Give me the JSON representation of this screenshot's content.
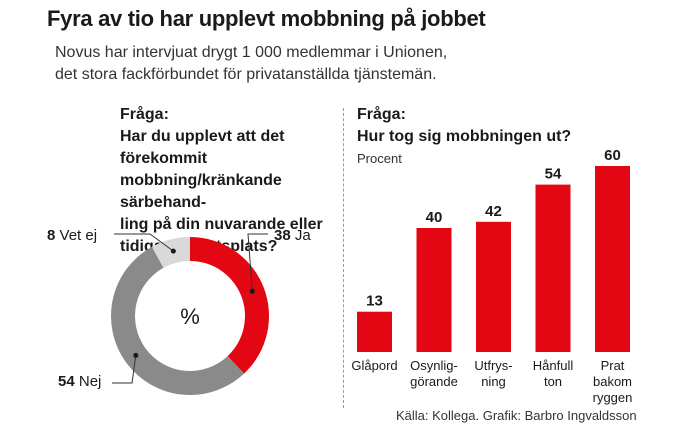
{
  "header": {
    "title": "Fyra av tio har upplevt mobbning på jobbet",
    "subtitle_lines": [
      "Novus har intervjuat drygt 1 000 medlemmar i Unionen,",
      "det stora fackförbundet för privatanställda tjänstemän."
    ]
  },
  "left": {
    "question_label": "Fråga:",
    "question_lines": [
      "Har du upplevt att det förekommit",
      "mobbning/kränkande särbehand-",
      "ling på din nuvarande eller",
      "tidigare arbetsplats?"
    ],
    "center_label": "%"
  },
  "right": {
    "question_label": "Fråga:",
    "question_text": "Hur tog sig mobbningen ut?",
    "unit_label": "Procent"
  },
  "source": "Källa: Kollega. Grafik: Barbro Ingvaldsson",
  "colors": {
    "red": "#e30613",
    "gray": "#8a8a8a",
    "light_gray": "#d9d9d9"
  },
  "chart_data": [
    {
      "type": "pie",
      "title": "",
      "slices": [
        {
          "label": "Ja",
          "value": 38,
          "color": "#e30613"
        },
        {
          "label": "Nej",
          "value": 54,
          "color": "#8a8a8a"
        },
        {
          "label": "Vet ej",
          "value": 8,
          "color": "#d9d9d9"
        }
      ]
    },
    {
      "type": "bar",
      "title": "",
      "ylabel": "Procent",
      "ylim": [
        0,
        60
      ],
      "categories": [
        [
          "Glåpord"
        ],
        [
          "Osynlig-",
          "görande"
        ],
        [
          "Utfrys-",
          "ning"
        ],
        [
          "Hånfull",
          "ton"
        ],
        [
          "Prat",
          "bakom",
          "ryggen"
        ]
      ],
      "values": [
        13,
        40,
        42,
        54,
        60
      ],
      "color": "#e30613"
    }
  ]
}
